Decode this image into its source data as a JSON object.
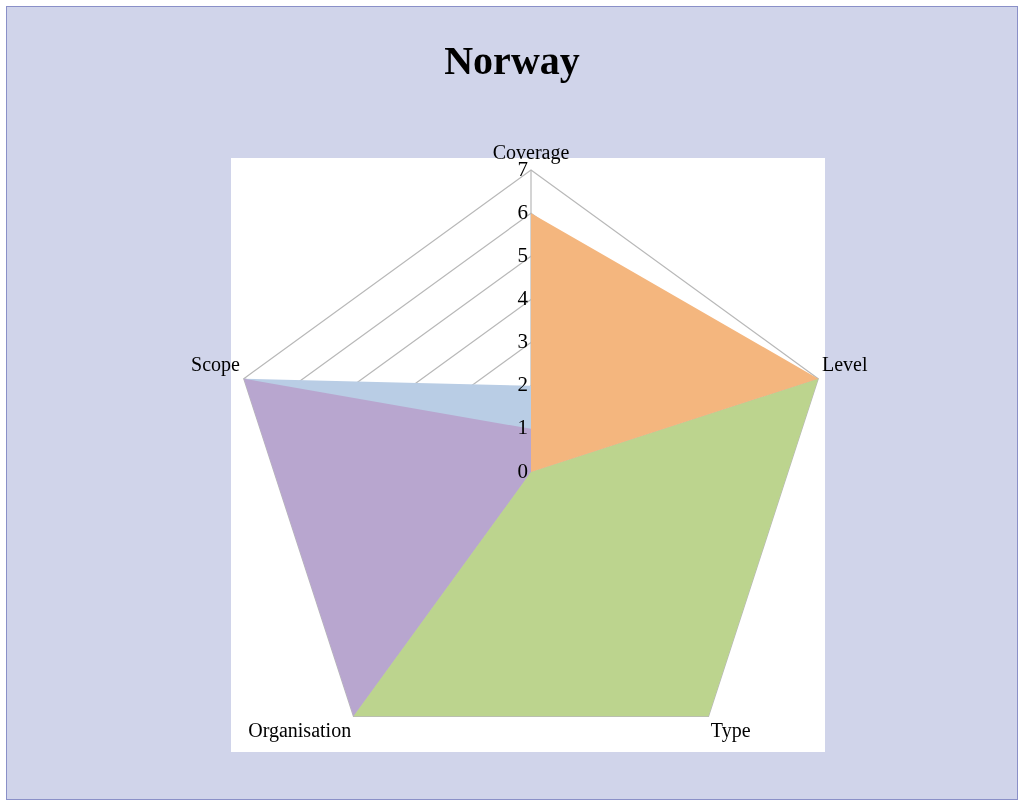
{
  "chart_data": {
    "type": "radar",
    "title": "Norway",
    "categories": [
      "Coverage",
      "Level",
      "Type",
      "Organisation",
      "Scope"
    ],
    "series": [
      {
        "color": "#b9cde5",
        "values": [
          2,
          0,
          0,
          0,
          7
        ]
      },
      {
        "color": "#b8a6cf",
        "values": [
          1,
          0,
          0,
          7,
          7
        ]
      },
      {
        "color": "#bcd48e",
        "values": [
          0,
          7,
          7,
          7,
          0
        ]
      },
      {
        "color": "#f4b67e",
        "values": [
          6,
          7,
          0,
          7,
          0
        ]
      }
    ],
    "ylim": [
      0,
      7
    ],
    "yticks": [
      0,
      1,
      2,
      3,
      4,
      5,
      6,
      7
    ],
    "grid": true,
    "legend": false
  }
}
